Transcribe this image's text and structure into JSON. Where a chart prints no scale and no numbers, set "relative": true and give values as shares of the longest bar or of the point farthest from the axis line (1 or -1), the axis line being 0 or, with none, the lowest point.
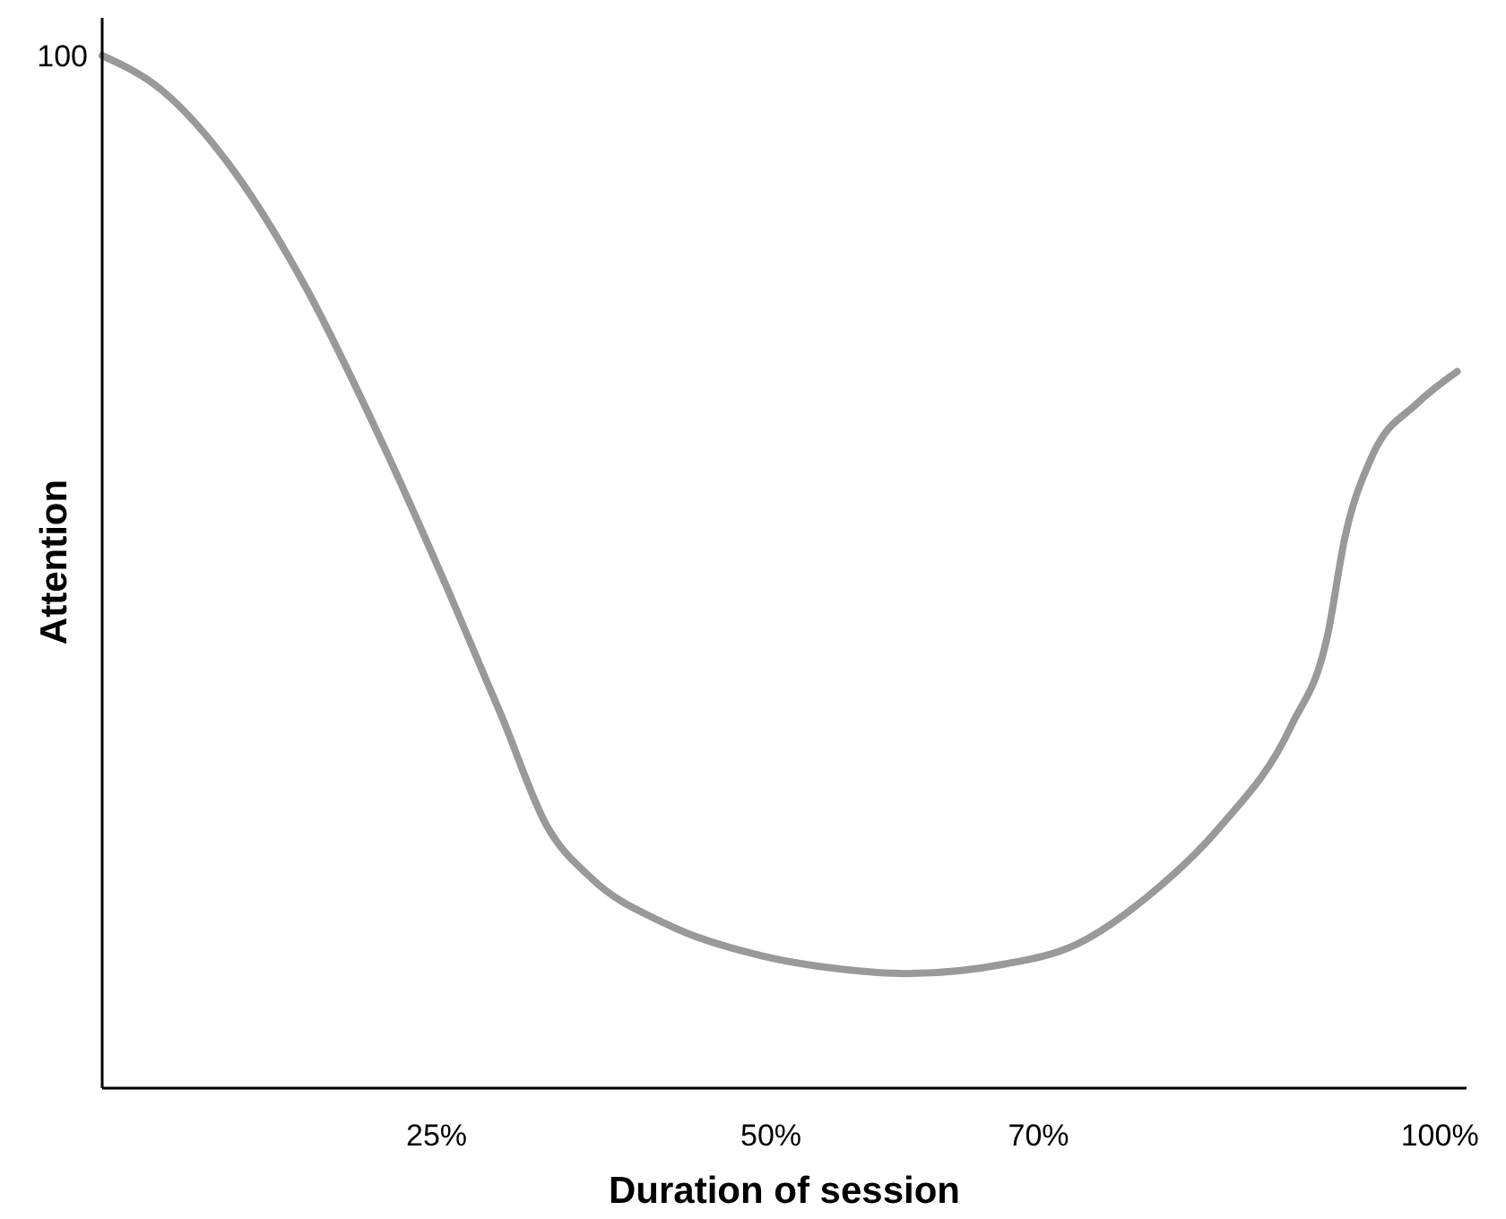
{
  "chart_data": {
    "type": "line",
    "relative": true,
    "xlabel": "Duration of session",
    "ylabel": "Attention",
    "annotations": [
      "100"
    ],
    "xlim": [
      0,
      102
    ],
    "xticks": [
      {
        "value": 25,
        "label": "25%"
      },
      {
        "value": 50,
        "label": "50%"
      },
      {
        "value": 70,
        "label": "70%"
      },
      {
        "value": 100,
        "label": "100%"
      }
    ],
    "grid": false,
    "marker": "none",
    "line_style": "solid",
    "series": [
      {
        "color": "#999999",
        "x": [
          0,
          4.4,
          9.8,
          15.2,
          20.5,
          25.9,
          29.9,
          33.2,
          36.6,
          42.0,
          48.7,
          55.4,
          60.1,
          67.4,
          72.8,
          78.2,
          83.5,
          88.9,
          91.6,
          92.9,
          94.9,
          98.3,
          101.3
        ],
        "values": [
          1.0,
          0.967,
          0.889,
          0.776,
          0.637,
          0.481,
          0.359,
          0.255,
          0.203,
          0.16,
          0.13,
          0.115,
          0.111,
          0.12,
          0.139,
          0.186,
          0.252,
          0.351,
          0.438,
          0.533,
          0.611,
          0.663,
          0.694
        ]
      }
    ]
  }
}
